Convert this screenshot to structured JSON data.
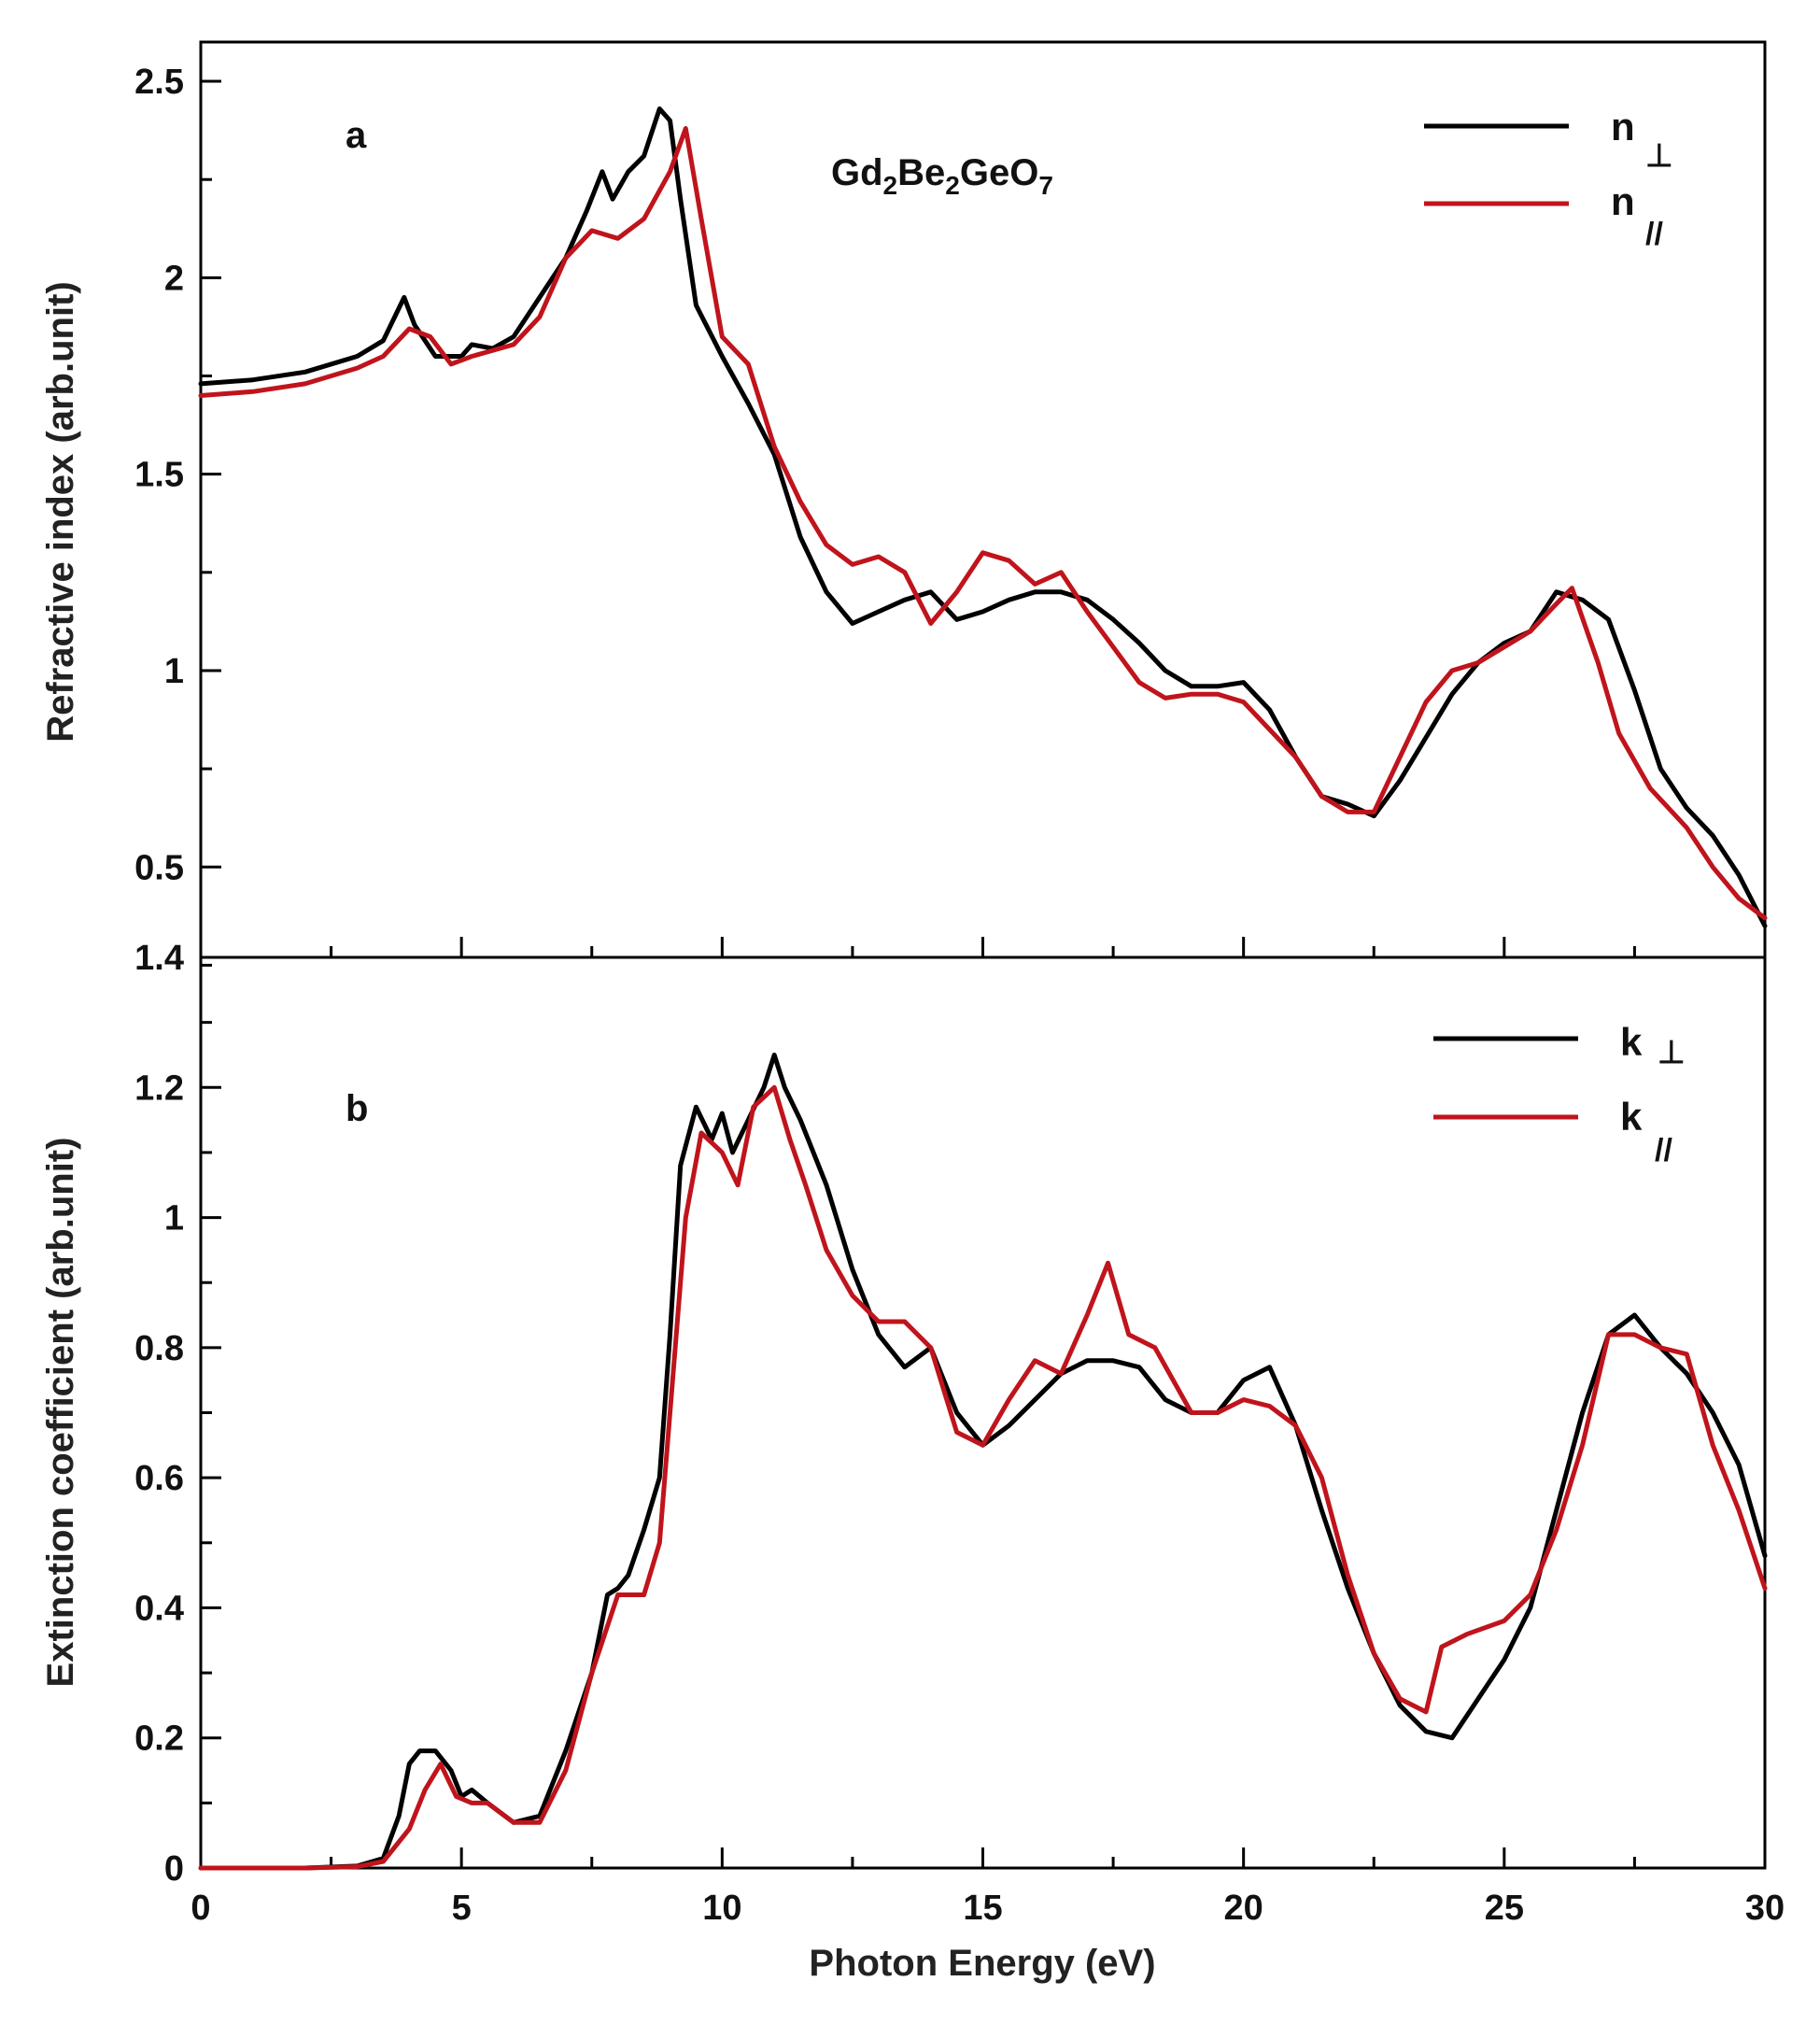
{
  "chart_data": [
    {
      "type": "line",
      "panel": "a",
      "annotation": "Gd2Be2GeO7",
      "annotation_parts": {
        "p1": "Gd",
        "s1": "2",
        "p2": "Be",
        "s2": "2",
        "p3": "GeO",
        "s3": "7"
      },
      "xlabel": "",
      "ylabel": "Refractive index (arb.unit)",
      "xlim": [
        0,
        30
      ],
      "ylim": [
        0.27,
        2.6
      ],
      "xticks": [
        0,
        5,
        10,
        15,
        20,
        25,
        30
      ],
      "yticks": [
        0.5,
        1,
        1.5,
        2,
        2.5
      ],
      "ytick_labels": [
        "0.5",
        "1",
        "1.5",
        "2",
        "2.5"
      ],
      "legend_position": "top-right",
      "series": [
        {
          "name": "n ⊥",
          "label": "n",
          "sub": "⊥",
          "color": "#000000",
          "x": [
            0,
            1,
            2,
            3,
            3.5,
            3.9,
            4.1,
            4.5,
            5,
            5.2,
            5.6,
            6,
            6.5,
            7,
            7.4,
            7.7,
            7.9,
            8.2,
            8.5,
            8.8,
            9.0,
            9.2,
            9.5,
            10,
            10.5,
            11,
            11.5,
            12,
            12.5,
            13,
            13.5,
            14,
            14.5,
            15,
            15.5,
            16,
            16.5,
            17,
            17.5,
            18,
            18.5,
            19,
            19.5,
            20,
            20.5,
            21,
            21.5,
            22,
            22.5,
            23,
            23.5,
            24,
            24.5,
            25,
            25.5,
            26,
            26.5,
            27,
            27.5,
            28,
            28.5,
            29,
            29.5,
            30
          ],
          "y": [
            1.73,
            1.74,
            1.76,
            1.8,
            1.84,
            1.95,
            1.88,
            1.8,
            1.8,
            1.83,
            1.82,
            1.85,
            1.95,
            2.05,
            2.17,
            2.27,
            2.2,
            2.27,
            2.31,
            2.43,
            2.4,
            2.2,
            1.93,
            1.8,
            1.68,
            1.55,
            1.34,
            1.2,
            1.12,
            1.15,
            1.18,
            1.2,
            1.13,
            1.15,
            1.18,
            1.2,
            1.2,
            1.18,
            1.13,
            1.07,
            1.0,
            0.96,
            0.96,
            0.97,
            0.9,
            0.78,
            0.68,
            0.66,
            0.63,
            0.72,
            0.83,
            0.94,
            1.02,
            1.07,
            1.1,
            1.2,
            1.18,
            1.13,
            0.95,
            0.75,
            0.65,
            0.58,
            0.48,
            0.35
          ]
        },
        {
          "name": "n //",
          "label": "n",
          "sub": "//",
          "color": "#c0141c",
          "x": [
            0,
            1,
            2,
            3,
            3.5,
            4,
            4.4,
            4.8,
            5.2,
            6,
            6.5,
            7,
            7.5,
            8,
            8.5,
            9.0,
            9.3,
            9.6,
            10,
            10.5,
            11,
            11.5,
            12,
            12.5,
            13,
            13.5,
            14,
            14.5,
            15,
            15.5,
            16,
            16.5,
            17,
            17.5,
            18,
            18.5,
            19,
            19.5,
            20,
            20.5,
            21,
            21.5,
            22,
            22.5,
            23,
            23.5,
            24,
            24.5,
            25,
            25.5,
            26,
            26.3,
            26.8,
            27.2,
            27.8,
            28.5,
            29,
            29.5,
            30
          ],
          "y": [
            1.7,
            1.71,
            1.73,
            1.77,
            1.8,
            1.87,
            1.85,
            1.78,
            1.8,
            1.83,
            1.9,
            2.05,
            2.12,
            2.1,
            2.15,
            2.27,
            2.38,
            2.15,
            1.85,
            1.78,
            1.57,
            1.43,
            1.32,
            1.27,
            1.29,
            1.25,
            1.12,
            1.2,
            1.3,
            1.28,
            1.22,
            1.25,
            1.15,
            1.06,
            0.97,
            0.93,
            0.94,
            0.94,
            0.92,
            0.85,
            0.78,
            0.68,
            0.64,
            0.64,
            0.78,
            0.92,
            1.0,
            1.02,
            1.06,
            1.1,
            1.17,
            1.21,
            1.02,
            0.84,
            0.7,
            0.6,
            0.5,
            0.42,
            0.37
          ]
        }
      ]
    },
    {
      "type": "line",
      "panel": "b",
      "xlabel": "Photon Energy (eV)",
      "ylabel": "Extinction coefficient (arb.unit)",
      "xlim": [
        0,
        30
      ],
      "ylim": [
        0,
        1.4
      ],
      "xticks": [
        0,
        5,
        10,
        15,
        20,
        25,
        30
      ],
      "yticks": [
        0,
        0.2,
        0.4,
        0.6,
        0.8,
        1,
        1.2,
        1.4
      ],
      "ytick_labels": [
        "0",
        "0.2",
        "0.4",
        "0.6",
        "0.8",
        "1",
        "1.2",
        "1.4"
      ],
      "legend_position": "top-right",
      "series": [
        {
          "name": "k ⊥",
          "label": "k",
          "sub": "⊥",
          "color": "#000000",
          "x": [
            0,
            2,
            3,
            3.5,
            3.8,
            4.0,
            4.2,
            4.5,
            4.8,
            5.0,
            5.2,
            5.5,
            6,
            6.5,
            7,
            7.5,
            7.8,
            8.0,
            8.2,
            8.5,
            8.8,
            9.0,
            9.2,
            9.5,
            9.8,
            10.0,
            10.2,
            10.5,
            10.8,
            11.0,
            11.2,
            11.5,
            12,
            12.5,
            13,
            13.5,
            14,
            14.5,
            15,
            15.5,
            16,
            16.5,
            17,
            17.5,
            18,
            18.5,
            19,
            19.5,
            20,
            20.5,
            21,
            21.5,
            22,
            22.5,
            23,
            23.5,
            24,
            24.5,
            25,
            25.5,
            26,
            26.5,
            27,
            27.5,
            28,
            28.5,
            29,
            29.5,
            30
          ],
          "y": [
            0,
            0,
            0.003,
            0.015,
            0.08,
            0.16,
            0.18,
            0.18,
            0.15,
            0.11,
            0.12,
            0.1,
            0.07,
            0.08,
            0.18,
            0.3,
            0.42,
            0.43,
            0.45,
            0.52,
            0.6,
            0.82,
            1.08,
            1.17,
            1.12,
            1.16,
            1.1,
            1.15,
            1.2,
            1.25,
            1.2,
            1.15,
            1.05,
            0.92,
            0.82,
            0.77,
            0.8,
            0.7,
            0.65,
            0.68,
            0.72,
            0.76,
            0.78,
            0.78,
            0.77,
            0.72,
            0.7,
            0.7,
            0.75,
            0.77,
            0.68,
            0.55,
            0.43,
            0.33,
            0.25,
            0.21,
            0.2,
            0.26,
            0.32,
            0.4,
            0.55,
            0.7,
            0.82,
            0.85,
            0.8,
            0.76,
            0.7,
            0.62,
            0.48
          ]
        },
        {
          "name": "k //",
          "label": "k",
          "sub": "//",
          "color": "#c0141c",
          "x": [
            0,
            2,
            3,
            3.5,
            4.0,
            4.3,
            4.6,
            4.9,
            5.2,
            5.5,
            6,
            6.5,
            7,
            7.5,
            8.0,
            8.5,
            8.8,
            9.0,
            9.3,
            9.6,
            10,
            10.3,
            10.6,
            11.0,
            11.3,
            11.6,
            12,
            12.5,
            13,
            13.5,
            14,
            14.5,
            15,
            15.5,
            16,
            16.5,
            17,
            17.4,
            17.8,
            18.3,
            19,
            19.5,
            20,
            20.5,
            21,
            21.5,
            22,
            22.5,
            23,
            23.5,
            23.8,
            24.3,
            25,
            25.5,
            26,
            26.5,
            27,
            27.5,
            28,
            28.5,
            29,
            29.5,
            30
          ],
          "y": [
            0,
            0,
            0.002,
            0.01,
            0.06,
            0.12,
            0.16,
            0.11,
            0.1,
            0.1,
            0.07,
            0.07,
            0.15,
            0.3,
            0.42,
            0.42,
            0.5,
            0.7,
            1.0,
            1.13,
            1.1,
            1.05,
            1.17,
            1.2,
            1.12,
            1.05,
            0.95,
            0.88,
            0.84,
            0.84,
            0.8,
            0.67,
            0.65,
            0.72,
            0.78,
            0.76,
            0.85,
            0.93,
            0.82,
            0.8,
            0.7,
            0.7,
            0.72,
            0.71,
            0.68,
            0.6,
            0.45,
            0.33,
            0.26,
            0.24,
            0.34,
            0.36,
            0.38,
            0.42,
            0.52,
            0.65,
            0.82,
            0.82,
            0.8,
            0.79,
            0.65,
            0.55,
            0.43
          ]
        }
      ]
    }
  ]
}
